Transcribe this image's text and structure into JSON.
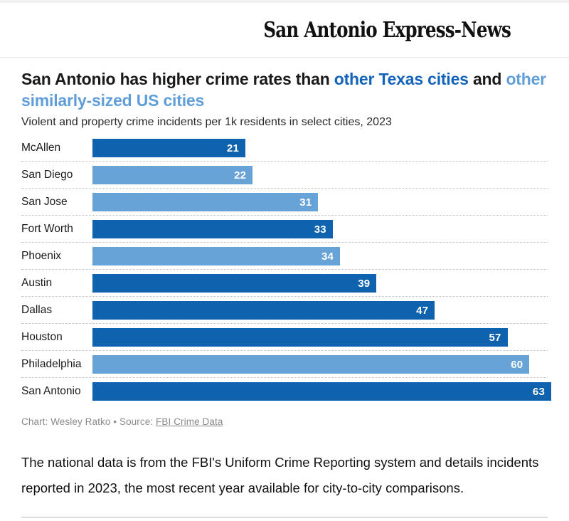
{
  "masthead": {
    "logo_text": "San Antonio Express-News"
  },
  "headline": {
    "part1": "San Antonio has higher crime rates than ",
    "highlight_texas": "other Texas cities",
    "part2": " and ",
    "highlight_us": "other similarly-sized US cities"
  },
  "chart_data": {
    "type": "bar",
    "orientation": "horizontal",
    "title": "San Antonio has higher crime rates than other Texas cities and other similarly-sized US cities",
    "subtitle": "Violent and property crime incidents per 1k residents in select cities, 2023",
    "categories": [
      "McAllen",
      "San Diego",
      "San Jose",
      "Fort Worth",
      "Phoenix",
      "Austin",
      "Dallas",
      "Houston",
      "Philadelphia",
      "San Antonio"
    ],
    "values": [
      21,
      22,
      31,
      33,
      34,
      39,
      47,
      57,
      60,
      63
    ],
    "series_membership": [
      "texas",
      "us",
      "us",
      "texas",
      "us",
      "texas",
      "texas",
      "texas",
      "us",
      "texas"
    ],
    "colors": {
      "texas": "#0f62ad",
      "us": "#68a3d8"
    },
    "xlim": [
      0,
      63
    ],
    "value_labels": "inside-end-white",
    "grid": "dotted-row-separators",
    "legend": "none"
  },
  "caption": {
    "prefix": "Chart: Wesley Ratko • Source: ",
    "source_link": "FBI Crime Data"
  },
  "body_paragraph": "The national data is from the FBI's Uniform Crime Reporting system and details incidents reported in 2023, the most recent year available for city-to-city comparisons."
}
